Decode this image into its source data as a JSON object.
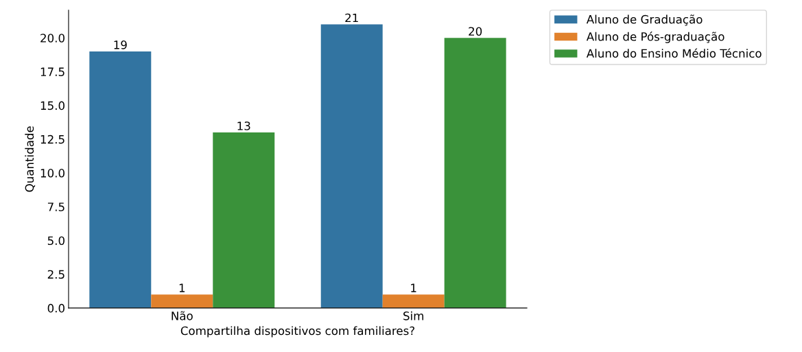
{
  "chart_data": {
    "type": "bar",
    "xlabel": "Compartilha dispositivos com familiares?",
    "ylabel": "Quantidade",
    "categories": [
      "Não",
      "Sim"
    ],
    "series": [
      {
        "name": "Aluno de Graduação",
        "color": "#3274a1",
        "values": [
          19,
          21
        ]
      },
      {
        "name": "Aluno de Pós-graduação",
        "color": "#e1812c",
        "values": [
          1,
          1
        ]
      },
      {
        "name": "Aluno do Ensino Médio Técnico",
        "color": "#3a923a",
        "values": [
          13,
          20
        ]
      }
    ],
    "ylim": [
      0,
      22.05
    ],
    "yticks": [
      {
        "value": 0,
        "label": "0.0"
      },
      {
        "value": 2.5,
        "label": "2.5"
      },
      {
        "value": 5,
        "label": "5.0"
      },
      {
        "value": 7.5,
        "label": "7.5"
      },
      {
        "value": 10,
        "label": "10.0"
      },
      {
        "value": 12.5,
        "label": "12.5"
      },
      {
        "value": 15,
        "label": "15.0"
      },
      {
        "value": 17.5,
        "label": "17.5"
      },
      {
        "value": 20,
        "label": "20.0"
      }
    ],
    "data_labels": true,
    "legend": "top right",
    "grid": false
  }
}
